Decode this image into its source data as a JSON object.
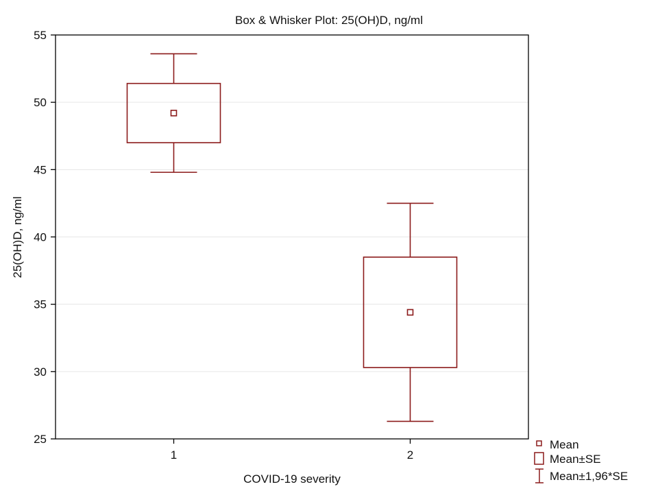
{
  "chart_data": {
    "type": "box",
    "title": "Box & Whisker Plot: 25(OH)D, ng/ml",
    "xlabel": "COVID-19 severity",
    "ylabel": "25(OH)D, ng/ml",
    "ylim": [
      25,
      55
    ],
    "yticks": [
      25,
      30,
      35,
      40,
      45,
      50,
      55
    ],
    "categories": [
      "1",
      "2"
    ],
    "series": [
      {
        "category": "1",
        "mean": 49.2,
        "se_low": 47.0,
        "se_high": 51.4,
        "ci_low": 44.8,
        "ci_high": 53.6
      },
      {
        "category": "2",
        "mean": 34.4,
        "se_low": 30.3,
        "se_high": 38.5,
        "ci_low": 26.3,
        "ci_high": 42.5
      }
    ],
    "legend": {
      "position": "bottom-right",
      "items": [
        {
          "key": "mean",
          "label": "Mean"
        },
        {
          "key": "se",
          "label": "Mean±SE"
        },
        {
          "key": "ci",
          "label": "Mean±1,96*SE"
        }
      ]
    },
    "colors": {
      "series": "#8b1a1a",
      "grid": "#e6e6e6",
      "axis": "#000000"
    }
  }
}
